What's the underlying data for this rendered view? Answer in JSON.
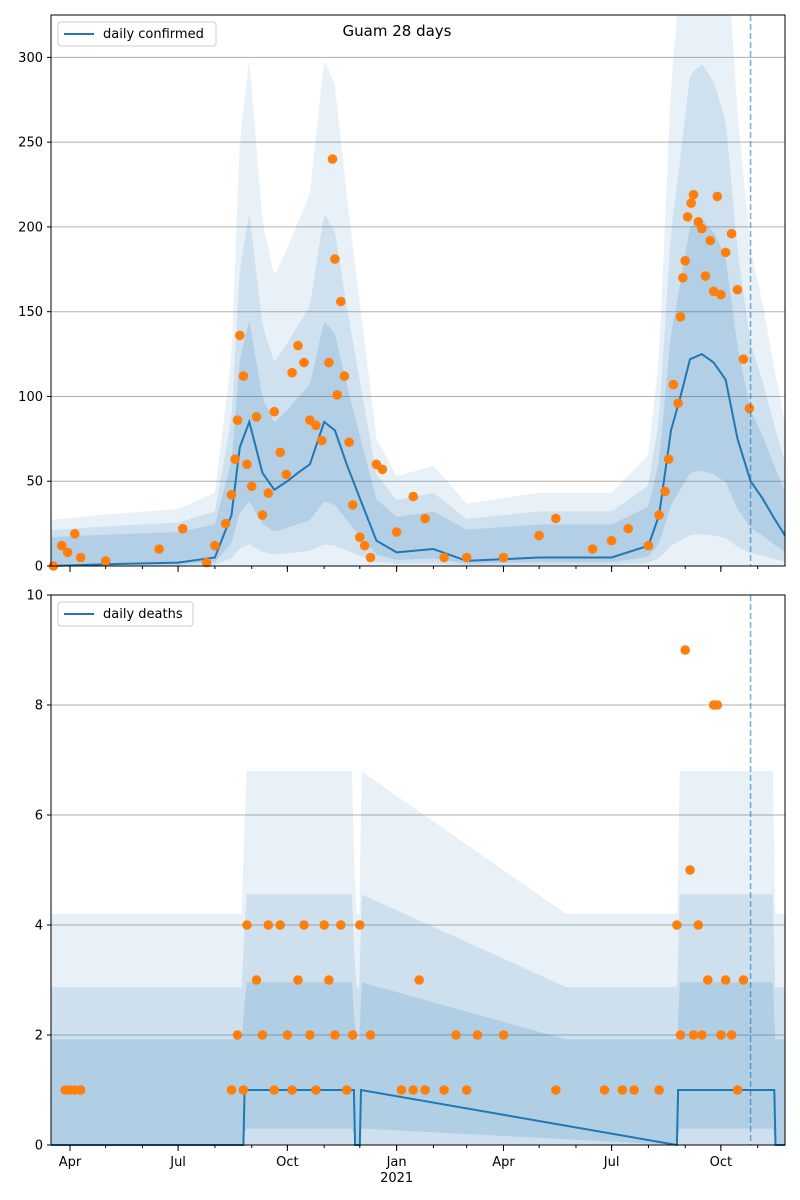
{
  "colors": {
    "line": "#1f77b4",
    "points": "#ff7f0e",
    "band": "#1f77b4",
    "grid": "#b0b0b0",
    "axis": "#000000"
  },
  "chart_data": [
    {
      "type": "line",
      "title": "Guam 28 days",
      "legend": [
        "daily confirmed"
      ],
      "legend_position": "top-left",
      "grid": "horizontal",
      "xlim": [
        "2020-03-16",
        "2021-11-24"
      ],
      "ylim": [
        0,
        325
      ],
      "yticks": [
        0,
        50,
        100,
        150,
        200,
        250,
        300
      ],
      "xticks": [
        {
          "date": "2020-04-01",
          "label": "Apr"
        },
        {
          "date": "2020-07-01",
          "label": "Jul"
        },
        {
          "date": "2020-10-01",
          "label": "Oct"
        },
        {
          "date": "2021-01-01",
          "label": "Jan",
          "sublabel": "2021"
        },
        {
          "date": "2021-04-01",
          "label": "Apr"
        },
        {
          "date": "2021-07-01",
          "label": "Jul"
        },
        {
          "date": "2021-10-01",
          "label": "Oct"
        }
      ],
      "forecast_start": "2021-10-26",
      "series": [
        {
          "name": "daily confirmed",
          "kind": "line",
          "x": [
            "2020-03-16",
            "2020-05-01",
            "2020-07-01",
            "2020-08-01",
            "2020-08-15",
            "2020-08-22",
            "2020-08-30",
            "2020-09-10",
            "2020-09-20",
            "2020-10-01",
            "2020-10-10",
            "2020-10-20",
            "2020-11-01",
            "2020-11-10",
            "2020-11-20",
            "2020-12-01",
            "2020-12-15",
            "2021-01-01",
            "2021-02-01",
            "2021-03-01",
            "2021-05-01",
            "2021-06-01",
            "2021-07-01",
            "2021-08-01",
            "2021-08-10",
            "2021-08-20",
            "2021-08-28",
            "2021-09-05",
            "2021-09-15",
            "2021-09-25",
            "2021-10-05",
            "2021-10-15",
            "2021-10-26",
            "2021-11-05",
            "2021-11-15",
            "2021-11-24"
          ],
          "y": [
            0,
            1,
            2,
            5,
            30,
            70,
            85,
            55,
            45,
            50,
            55,
            60,
            85,
            80,
            60,
            40,
            15,
            8,
            10,
            3,
            5,
            5,
            5,
            12,
            30,
            80,
            100,
            122,
            125,
            120,
            110,
            75,
            50,
            40,
            28,
            18
          ]
        },
        {
          "name": "observed daily confirmed",
          "kind": "points",
          "x": [
            "2020-03-18",
            "2020-03-25",
            "2020-03-30",
            "2020-04-05",
            "2020-04-10",
            "2020-05-01",
            "2020-06-15",
            "2020-07-05",
            "2020-07-25",
            "2020-08-01",
            "2020-08-10",
            "2020-08-15",
            "2020-08-18",
            "2020-08-20",
            "2020-08-22",
            "2020-08-25",
            "2020-08-28",
            "2020-09-01",
            "2020-09-05",
            "2020-09-10",
            "2020-09-15",
            "2020-09-20",
            "2020-09-25",
            "2020-09-30",
            "2020-10-05",
            "2020-10-10",
            "2020-10-15",
            "2020-10-20",
            "2020-10-25",
            "2020-10-30",
            "2020-11-05",
            "2020-11-08",
            "2020-11-10",
            "2020-11-12",
            "2020-11-15",
            "2020-11-18",
            "2020-11-22",
            "2020-11-25",
            "2020-12-01",
            "2020-12-05",
            "2020-12-10",
            "2020-12-15",
            "2020-12-20",
            "2021-01-01",
            "2021-01-15",
            "2021-01-25",
            "2021-02-10",
            "2021-03-01",
            "2021-04-01",
            "2021-05-01",
            "2021-05-15",
            "2021-06-15",
            "2021-07-01",
            "2021-07-15",
            "2021-08-01",
            "2021-08-10",
            "2021-08-15",
            "2021-08-18",
            "2021-08-22",
            "2021-08-26",
            "2021-08-28",
            "2021-08-30",
            "2021-09-01",
            "2021-09-03",
            "2021-09-06",
            "2021-09-08",
            "2021-09-12",
            "2021-09-15",
            "2021-09-18",
            "2021-09-22",
            "2021-09-25",
            "2021-09-28",
            "2021-10-01",
            "2021-10-05",
            "2021-10-10",
            "2021-10-15",
            "2021-10-20",
            "2021-10-25"
          ],
          "y": [
            0,
            12,
            8,
            19,
            5,
            3,
            10,
            22,
            2,
            12,
            25,
            42,
            63,
            86,
            136,
            112,
            60,
            47,
            88,
            30,
            43,
            91,
            67,
            54,
            114,
            130,
            120,
            86,
            83,
            74,
            120,
            240,
            181,
            101,
            156,
            112,
            73,
            36,
            17,
            12,
            5,
            60,
            57,
            20,
            41,
            28,
            5,
            5,
            5,
            18,
            28,
            10,
            15,
            22,
            12,
            30,
            44,
            63,
            107,
            96,
            147,
            170,
            180,
            206,
            214,
            219,
            203,
            199,
            171,
            192,
            162,
            218,
            160,
            185,
            196,
            163,
            122,
            93
          ]
        }
      ]
    },
    {
      "type": "line",
      "title": "",
      "legend": [
        "daily deaths"
      ],
      "legend_position": "top-left",
      "grid": "horizontal",
      "xlim": [
        "2020-03-16",
        "2021-11-24"
      ],
      "ylim": [
        0,
        10
      ],
      "yticks": [
        0,
        2,
        4,
        6,
        8,
        10
      ],
      "xticks": [
        {
          "date": "2020-04-01",
          "label": "Apr"
        },
        {
          "date": "2020-07-01",
          "label": "Jul"
        },
        {
          "date": "2020-10-01",
          "label": "Oct"
        },
        {
          "date": "2021-01-01",
          "label": "Jan",
          "sublabel": "2021"
        },
        {
          "date": "2021-04-01",
          "label": "Apr"
        },
        {
          "date": "2021-07-01",
          "label": "Jul"
        },
        {
          "date": "2021-10-01",
          "label": "Oct"
        }
      ],
      "forecast_start": "2021-10-26",
      "series": [
        {
          "name": "daily deaths",
          "kind": "line",
          "x": [
            "2020-03-16",
            "2020-08-25",
            "2020-08-26",
            "2020-11-26",
            "2020-11-27",
            "2020-12-01",
            "2020-12-02",
            "2021-08-25",
            "2021-08-26",
            "2021-11-15",
            "2021-11-16",
            "2021-11-24"
          ],
          "y": [
            0,
            0,
            1,
            1,
            0,
            0,
            1,
            0,
            1,
            1,
            0,
            0
          ]
        },
        {
          "name": "observed daily deaths",
          "kind": "points",
          "x": [
            "2020-03-28",
            "2020-04-01",
            "2020-04-05",
            "2020-04-10",
            "2020-08-15",
            "2020-08-20",
            "2020-08-25",
            "2020-08-28",
            "2020-09-05",
            "2020-09-10",
            "2020-09-15",
            "2020-09-20",
            "2020-09-25",
            "2020-10-01",
            "2020-10-05",
            "2020-10-10",
            "2020-10-15",
            "2020-10-20",
            "2020-10-25",
            "2020-11-01",
            "2020-11-05",
            "2020-11-10",
            "2020-11-15",
            "2020-11-20",
            "2020-11-25",
            "2020-12-01",
            "2020-12-10",
            "2021-01-05",
            "2021-01-15",
            "2021-01-20",
            "2021-01-25",
            "2021-02-10",
            "2021-02-20",
            "2021-03-01",
            "2021-03-10",
            "2021-04-01",
            "2021-05-15",
            "2021-06-25",
            "2021-07-10",
            "2021-07-20",
            "2021-08-10",
            "2021-08-25",
            "2021-08-28",
            "2021-09-01",
            "2021-09-05",
            "2021-09-08",
            "2021-09-12",
            "2021-09-15",
            "2021-09-20",
            "2021-09-25",
            "2021-09-28",
            "2021-10-01",
            "2021-10-05",
            "2021-10-10",
            "2021-10-15",
            "2021-10-20"
          ],
          "y": [
            1,
            1,
            1,
            1,
            1,
            2,
            1,
            4,
            3,
            2,
            4,
            1,
            4,
            2,
            1,
            3,
            4,
            2,
            1,
            4,
            3,
            2,
            4,
            1,
            2,
            4,
            2,
            1,
            1,
            3,
            1,
            1,
            2,
            1,
            2,
            2,
            1,
            1,
            1,
            1,
            1,
            4,
            2,
            9,
            5,
            2,
            4,
            2,
            3,
            8,
            8,
            2,
            3,
            2,
            1,
            3
          ]
        }
      ]
    }
  ]
}
